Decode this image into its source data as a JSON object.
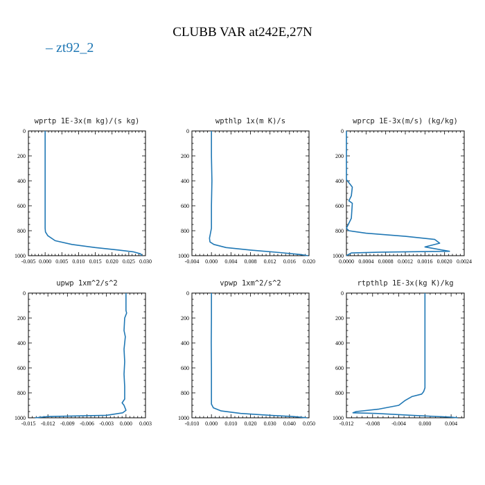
{
  "figure": {
    "title": "CLUBB VAR at242E,27N",
    "legend": {
      "label": "zt92_2",
      "color": "#1f77b4"
    }
  },
  "chart_data": [
    {
      "type": "line",
      "title": "wprtp  1E-3x(m kg)/(s kg)",
      "xlim": [
        -0.005,
        0.03
      ],
      "xticks": [
        "-0.005",
        "0.000",
        "0.005",
        "0.010",
        "0.015",
        "0.020",
        "0.025",
        "0.030"
      ],
      "ylim": [
        0,
        1000
      ],
      "y_inverted": true,
      "yticks": [
        "0",
        "200",
        "400",
        "600",
        "800",
        "1000"
      ],
      "series": [
        {
          "color": "#1f77b4",
          "points": [
            [
              0.0,
              0
            ],
            [
              0.0,
              200
            ],
            [
              0.0,
              400
            ],
            [
              0.0,
              600
            ],
            [
              0.0,
              780
            ],
            [
              0.0001,
              810
            ],
            [
              0.0008,
              840
            ],
            [
              0.003,
              880
            ],
            [
              0.008,
              910
            ],
            [
              0.015,
              935
            ],
            [
              0.022,
              955
            ],
            [
              0.0265,
              970
            ],
            [
              0.0285,
              985
            ],
            [
              0.029,
              1000
            ]
          ]
        }
      ]
    },
    {
      "type": "line",
      "title": "wpthlp  1x(m K)/s",
      "xlim": [
        -0.004,
        0.02
      ],
      "xticks": [
        "-0.004",
        "0.000",
        "0.004",
        "0.008",
        "0.012",
        "0.016",
        "0.020"
      ],
      "ylim": [
        0,
        1000
      ],
      "y_inverted": true,
      "yticks": [
        "0",
        "200",
        "400",
        "600",
        "800",
        "1000"
      ],
      "series": [
        {
          "color": "#1f77b4",
          "points": [
            [
              0.0,
              0
            ],
            [
              0.0,
              200
            ],
            [
              0.0001,
              400
            ],
            [
              0.0,
              600
            ],
            [
              0.0,
              780
            ],
            [
              -0.0002,
              820
            ],
            [
              -0.0004,
              860
            ],
            [
              -0.0003,
              890
            ],
            [
              0.0005,
              910
            ],
            [
              0.003,
              935
            ],
            [
              0.008,
              955
            ],
            [
              0.014,
              975
            ],
            [
              0.018,
              990
            ],
            [
              0.0198,
              1000
            ]
          ]
        }
      ]
    },
    {
      "type": "line",
      "title": "wprcp  1E-3x(m/s) (kg/kg)",
      "xlim": [
        0.0,
        0.0024
      ],
      "xticks": [
        "0.0000",
        "0.0004",
        "0.0008",
        "0.0012",
        "0.0016",
        "0.0020",
        "0.0024"
      ],
      "ylim": [
        0,
        1000
      ],
      "y_inverted": true,
      "yticks": [
        "0",
        "200",
        "400",
        "600",
        "800",
        "1000"
      ],
      "series": [
        {
          "color": "#1f77b4",
          "points": [
            [
              0.0,
              0
            ],
            [
              0.0,
              200
            ],
            [
              0.0,
              390
            ],
            [
              8e-05,
              430
            ],
            [
              0.00012,
              450
            ],
            [
              0.0001,
              520
            ],
            [
              5e-05,
              560
            ],
            [
              0.00012,
              580
            ],
            [
              0.0001,
              700
            ],
            [
              0.0,
              780
            ],
            [
              5e-05,
              800
            ],
            [
              0.0004,
              820
            ],
            [
              0.0012,
              845
            ],
            [
              0.0018,
              870
            ],
            [
              0.0019,
              900
            ],
            [
              0.0016,
              930
            ],
            [
              0.0021,
              965
            ],
            [
              0.0007,
              972
            ],
            [
              0.0001,
              978
            ],
            [
              0.0,
              1000
            ]
          ]
        }
      ]
    },
    {
      "type": "line",
      "title": "upwp  1xm^2/s^2",
      "xlim": [
        -0.015,
        0.003
      ],
      "xticks": [
        "-0.015",
        "-0.012",
        "-0.009",
        "-0.006",
        "-0.003",
        "0.000",
        "0.003"
      ],
      "ylim": [
        0,
        1000
      ],
      "y_inverted": true,
      "yticks": [
        "0",
        "200",
        "400",
        "600",
        "800",
        "1000"
      ],
      "series": [
        {
          "color": "#1f77b4",
          "points": [
            [
              0.0,
              0
            ],
            [
              0.0,
              140
            ],
            [
              0.0001,
              160
            ],
            [
              -0.0002,
              200
            ],
            [
              -0.0003,
              300
            ],
            [
              -0.0001,
              350
            ],
            [
              -0.0003,
              450
            ],
            [
              -0.0002,
              550
            ],
            [
              -0.0003,
              650
            ],
            [
              -0.0002,
              750
            ],
            [
              -0.0002,
              850
            ],
            [
              -0.0006,
              880
            ],
            [
              -0.0003,
              900
            ],
            [
              0.0,
              940
            ],
            [
              -0.0005,
              960
            ],
            [
              -0.003,
              980
            ],
            [
              -0.012,
              990
            ],
            [
              -0.014,
              1000
            ]
          ]
        }
      ]
    },
    {
      "type": "line",
      "title": "vpwp  1xm^2/s^2",
      "xlim": [
        -0.01,
        0.05
      ],
      "xticks": [
        "-0.010",
        "0.000",
        "0.010",
        "0.020",
        "0.030",
        "0.040",
        "0.050"
      ],
      "ylim": [
        0,
        1000
      ],
      "y_inverted": true,
      "yticks": [
        "0",
        "200",
        "400",
        "600",
        "800",
        "1000"
      ],
      "series": [
        {
          "color": "#1f77b4",
          "points": [
            [
              0.0,
              0
            ],
            [
              0.0,
              200
            ],
            [
              -0.0001,
              400
            ],
            [
              0.0,
              600
            ],
            [
              0.0,
              800
            ],
            [
              0.0,
              890
            ],
            [
              0.001,
              920
            ],
            [
              0.005,
              945
            ],
            [
              0.015,
              965
            ],
            [
              0.03,
              980
            ],
            [
              0.042,
              990
            ],
            [
              0.049,
              1000
            ]
          ]
        }
      ]
    },
    {
      "type": "line",
      "title": "rtpthlp  1E-3x(kg K)/kg",
      "xlim": [
        -0.012,
        0.006
      ],
      "xticks": [
        "-0.012",
        "-0.008",
        "-0.004",
        "0.000",
        "0.004"
      ],
      "ylim": [
        0,
        1000
      ],
      "y_inverted": true,
      "yticks": [
        "0",
        "200",
        "400",
        "600",
        "800",
        "1000"
      ],
      "series": [
        {
          "color": "#1f77b4",
          "points": [
            [
              0.0,
              0
            ],
            [
              0.0,
              200
            ],
            [
              0.0,
              400
            ],
            [
              0.0,
              600
            ],
            [
              0.0,
              760
            ],
            [
              -0.0002,
              790
            ],
            [
              -0.0005,
              810
            ],
            [
              -0.002,
              830
            ],
            [
              -0.003,
              860
            ],
            [
              -0.004,
              900
            ],
            [
              -0.007,
              930
            ],
            [
              -0.0105,
              950
            ],
            [
              -0.011,
              960
            ],
            [
              -0.0075,
              965
            ],
            [
              -0.002,
              980
            ],
            [
              0.004,
              995
            ],
            [
              0.005,
              1000
            ]
          ]
        }
      ]
    }
  ]
}
